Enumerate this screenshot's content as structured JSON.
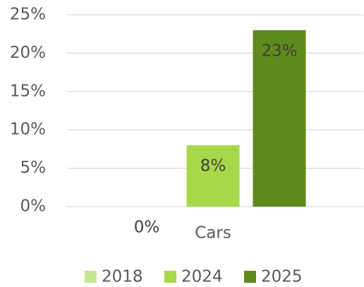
{
  "chart_data": {
    "type": "bar",
    "categories": [
      "Cars"
    ],
    "series": [
      {
        "name": "2018",
        "color": "#c5e88f",
        "values": [
          0
        ],
        "value_labels": [
          "0%"
        ]
      },
      {
        "name": "2024",
        "color": "#a6d84a",
        "values": [
          8
        ],
        "value_labels": [
          "8%"
        ]
      },
      {
        "name": "2025",
        "color": "#5e8a1b",
        "values": [
          23
        ],
        "value_labels": [
          "23%"
        ]
      }
    ],
    "ylim": [
      0,
      25
    ],
    "yticks": [
      {
        "value": 0,
        "label": "0%"
      },
      {
        "value": 5,
        "label": "5%"
      },
      {
        "value": 10,
        "label": "10%"
      },
      {
        "value": 15,
        "label": "15%"
      },
      {
        "value": 20,
        "label": "20%"
      },
      {
        "value": 25,
        "label": "25%"
      }
    ],
    "grid": true,
    "legend": "bottom"
  }
}
